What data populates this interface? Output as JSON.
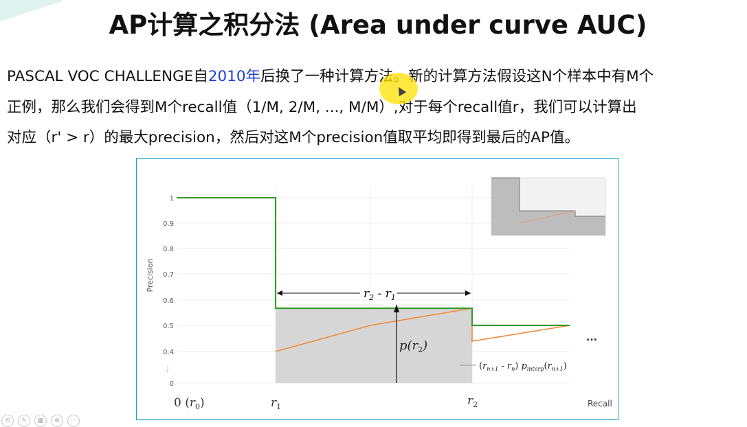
{
  "slide": {
    "title": "AP计算之积分法 (Area under curve AUC)",
    "paragraph": {
      "line1_pre": "PASCAL VOC CHALLENGE自",
      "line1_year": "2010年",
      "line1_post": "后换了一种计算方法。新的计算方法假设这N个样本中有M个",
      "line2": "正例，那么我们会得到M个recall值（1/M, 2/M, ..., M/M）,对于每个recall值r，我们可以计算出",
      "line3": "对应（r' > r）的最大precision，然后对这M个precision值取平均即得到最后的AP值。"
    },
    "accent_year_color": "#1f3fcf"
  },
  "figure": {
    "ylabel": "Precision",
    "xlabel": "Recall",
    "y_ticks": [
      "1",
      "0.9",
      "0.8",
      "0.7",
      "0.6",
      "0.5",
      "0.4",
      "⋮",
      "0"
    ],
    "x_labels": {
      "r0_a": "0 (",
      "r0_var": "r",
      "r0_sub": "0",
      "r0_b": ")",
      "r1_var": "r",
      "r1_sub": "1",
      "r2_var": "r",
      "r2_sub": "2"
    },
    "span_label": {
      "a": "r",
      "a_sub": "2",
      "minus": " - ",
      "b": "r",
      "b_sub": "1"
    },
    "p_label": {
      "p": "p(",
      "r": "r",
      "sub": "2",
      "close": ")"
    },
    "formula": {
      "open": "(",
      "r1": "r",
      "r1_sub": "n+1",
      "minus": " - ",
      "r2": "r",
      "r2_sub": "n",
      "close": ")",
      "p": " p",
      "p_sub": "interp",
      "arg_open": "(",
      "arg": "r",
      "arg_sub": "n+1",
      "arg_close": ")"
    },
    "ellipsis": "...",
    "colors": {
      "interpolated": "#3a9a2c",
      "raw": "#ef8a3a",
      "area": "#d6d6d6",
      "frame": "#1aa0c8"
    }
  },
  "chart_data": {
    "type": "line",
    "xlabel": "Recall",
    "ylabel": "Precision",
    "ylim": [
      0,
      1
    ],
    "series": [
      {
        "name": "",
        "color": "#3a9a2c",
        "x": [
          "r0",
          "r1",
          "r1",
          "r2",
          "r2",
          "end"
        ],
        "values": [
          1.0,
          1.0,
          0.57,
          0.57,
          0.5,
          0.5
        ]
      },
      {
        "name": "",
        "color": "#ef8a3a",
        "x": [
          "r1",
          "r2",
          "r2",
          "end"
        ],
        "values": [
          0.4,
          0.57,
          0.44,
          0.5
        ]
      }
    ],
    "annotations": [
      "r2 - r1",
      "p(r2)",
      "(r n+1 - r n) p interp(r n+1)"
    ]
  },
  "toolbar": {
    "items": [
      "⟲",
      "✎",
      "▦",
      "⊕",
      "⋯"
    ]
  }
}
